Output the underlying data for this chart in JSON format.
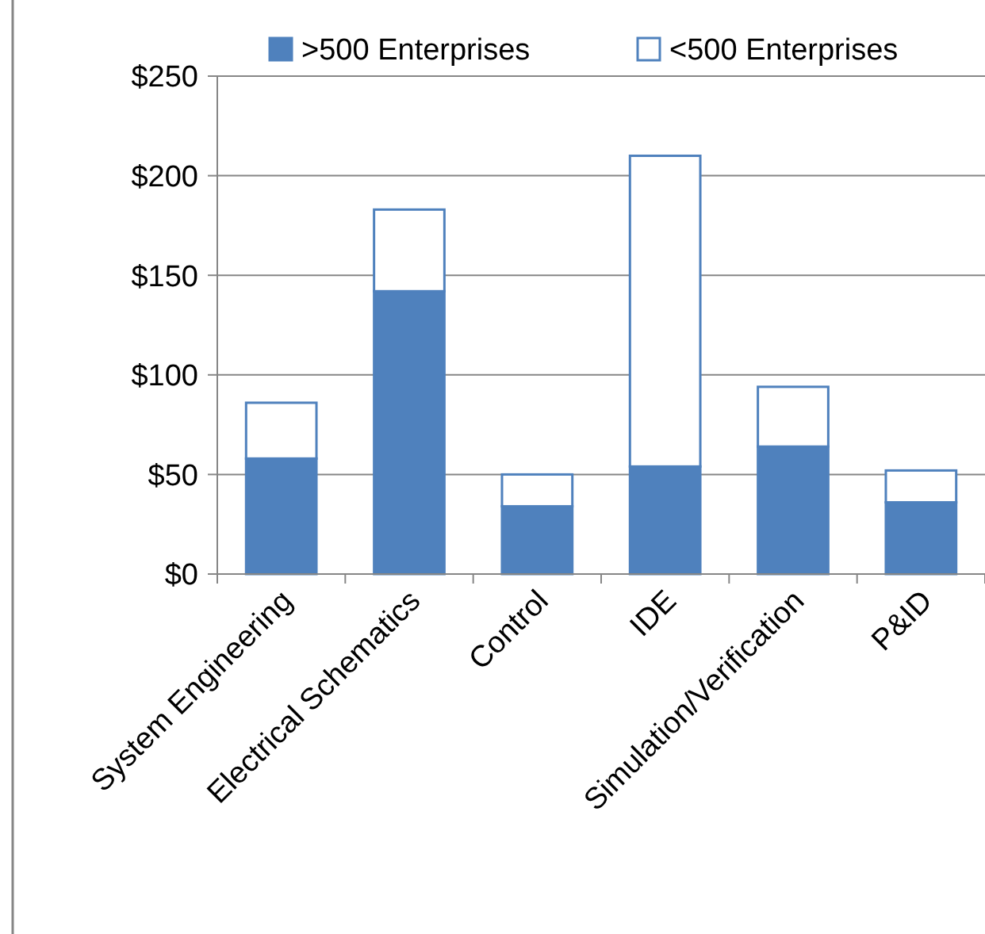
{
  "chart_data": {
    "type": "bar",
    "stacked": true,
    "categories": [
      "System Engineering",
      "Electrical Schematics",
      "Control",
      "IDE",
      "Simulation/Verification",
      "P&ID"
    ],
    "series": [
      {
        "name": ">500 Enterprises",
        "color": "#4f81bd",
        "values": [
          58,
          142,
          34,
          54,
          64,
          36
        ]
      },
      {
        "name": "<500 Enterprises",
        "color": "#ffffff",
        "values": [
          28,
          41,
          16,
          156,
          30,
          16
        ]
      }
    ],
    "ylim": [
      0,
      250
    ],
    "yticks": [
      {
        "value": 0,
        "label": "$0"
      },
      {
        "value": 50,
        "label": "$50"
      },
      {
        "value": 100,
        "label": "$100"
      },
      {
        "value": 150,
        "label": "$150"
      },
      {
        "value": 200,
        "label": "$200"
      },
      {
        "value": 250,
        "label": "$250"
      }
    ],
    "grid": "y",
    "legend": "top right"
  }
}
